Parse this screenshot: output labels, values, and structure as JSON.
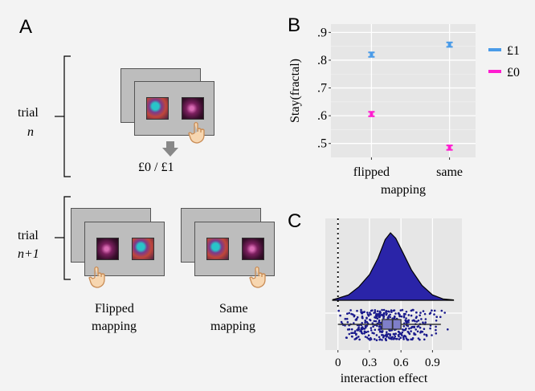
{
  "panels": {
    "a": "A",
    "b": "B",
    "c": "C"
  },
  "panel_a": {
    "trial_label": "trial",
    "trial_n": "n",
    "trial_n1": "n+1",
    "outcome": "£0 / £1",
    "flipped_line1": "Flipped",
    "flipped_line2": "mapping",
    "same_line1": "Same",
    "same_line2": "mapping"
  },
  "chart_data": [
    {
      "type": "scatter",
      "panel": "B",
      "categories": [
        "flipped",
        "same"
      ],
      "xlabel": "mapping",
      "ylabel": "Stay(fractal)",
      "yticks": [
        ".5",
        ".6",
        ".7",
        ".8",
        ".9"
      ],
      "ylim": [
        0.45,
        0.93
      ],
      "legend_position": "right",
      "series": [
        {
          "name": "£1",
          "color": "#4a9be8",
          "values": [
            0.82,
            0.856
          ],
          "err": [
            0.008,
            0.008
          ]
        },
        {
          "name": "£0",
          "color": "#ff1cd0",
          "values": [
            0.606,
            0.485
          ],
          "err": [
            0.008,
            0.008
          ]
        }
      ],
      "grid": true
    },
    {
      "type": "area",
      "panel": "C",
      "xlabel": "interaction effect",
      "xticks": [
        "0",
        "0.3",
        "0.6",
        "0.9"
      ],
      "xlim": [
        -0.12,
        1.18
      ],
      "density_x": [
        -0.05,
        0.0,
        0.1,
        0.2,
        0.3,
        0.38,
        0.45,
        0.5,
        0.55,
        0.62,
        0.7,
        0.8,
        0.9,
        1.0,
        1.1
      ],
      "density_y": [
        0.01,
        0.03,
        0.08,
        0.2,
        0.38,
        0.62,
        0.9,
        1.0,
        0.92,
        0.7,
        0.45,
        0.22,
        0.08,
        0.02,
        0.005
      ],
      "boxplot": {
        "whisker_low": 0.0,
        "q1": 0.42,
        "median": 0.52,
        "q3": 0.6,
        "whisker_high": 0.98
      },
      "reference_line_x": 0,
      "fill_color": "#2a24a8",
      "grid": true
    }
  ]
}
